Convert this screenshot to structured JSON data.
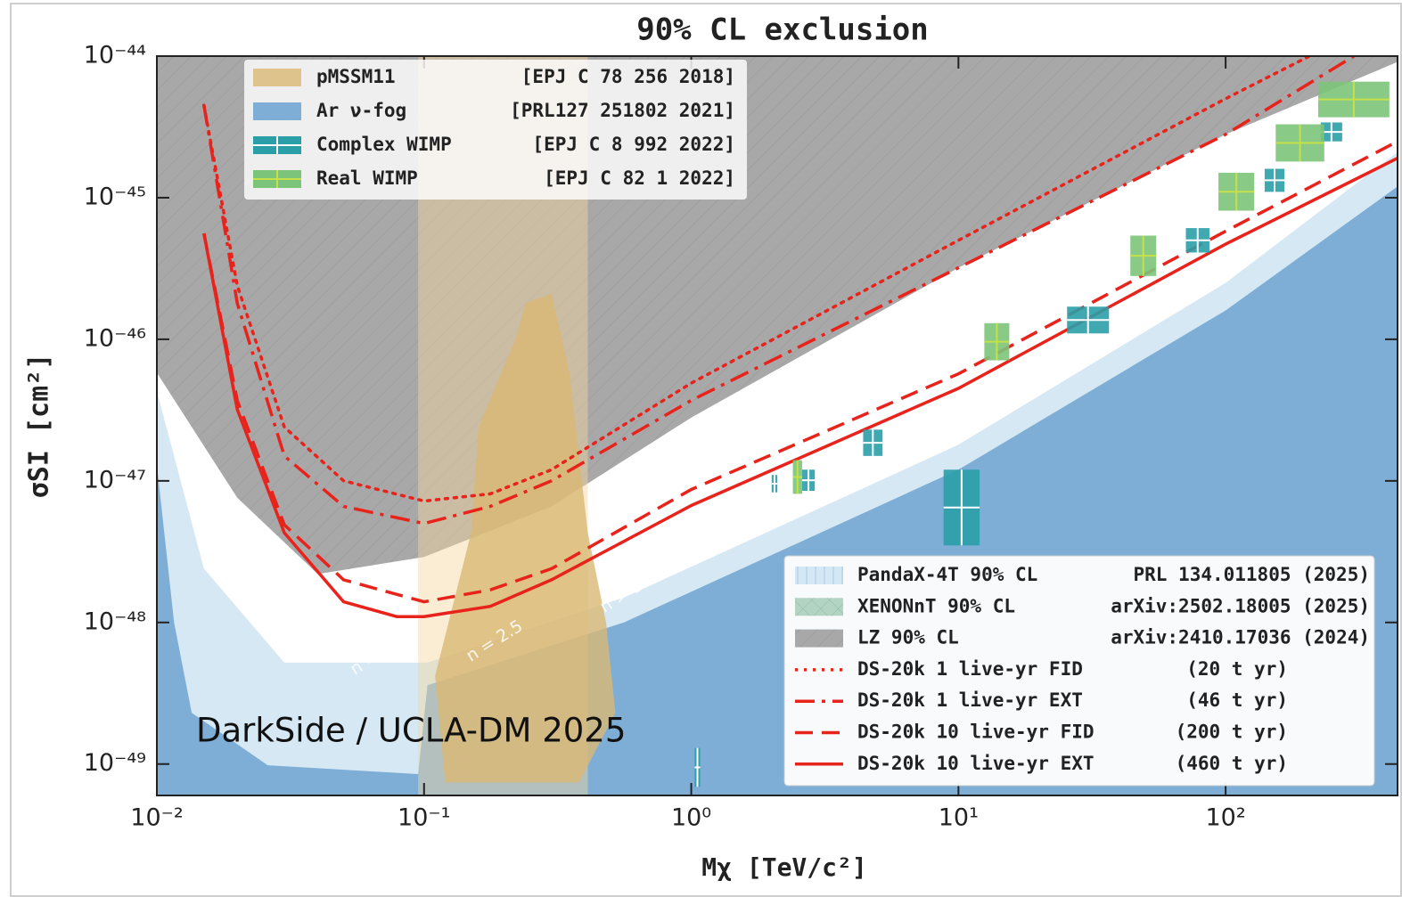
{
  "chart_data": {
    "type": "line",
    "title": "90% CL exclusion",
    "xlabel": "Mχ [TeV/c²]",
    "ylabel": "σSI [cm²]",
    "annotation": "DarkSide / UCLA-DM 2025",
    "contour_labels": [
      "n = 2.0",
      "n = 2.5",
      "n > 3.0"
    ],
    "xscale": "log",
    "yscale": "log",
    "xlim": [
      0.01,
      440
    ],
    "ylim": [
      6e-50,
      1e-44
    ],
    "xticks": [
      {
        "value": 0.01,
        "label": "10⁻²"
      },
      {
        "value": 0.1,
        "label": "10⁻¹"
      },
      {
        "value": 1,
        "label": "10⁰"
      },
      {
        "value": 10,
        "label": "10¹"
      },
      {
        "value": 100,
        "label": "10²"
      }
    ],
    "yticks": [
      {
        "value": 1e-49,
        "label": "10⁻⁴⁹"
      },
      {
        "value": 1e-48,
        "label": "10⁻⁴⁸"
      },
      {
        "value": 1e-47,
        "label": "10⁻⁴⁷"
      },
      {
        "value": 1e-46,
        "label": "10⁻⁴⁶"
      },
      {
        "value": 1e-45,
        "label": "10⁻⁴⁵"
      },
      {
        "value": 1e-44,
        "label": "10⁻⁴⁴"
      }
    ],
    "regions": [
      {
        "name": "PandaX-4T 90% CL",
        "ref": "PRL 134.011805 (2025)",
        "legend": "lower right",
        "color": "#d3e7f5",
        "hatch": "vertical",
        "fill": "above",
        "opacity": 1,
        "x": [
          0.01,
          0.03,
          0.1,
          0.3,
          1,
          10,
          50
        ],
        "y": [
          1e-46,
          1.3e-47,
          1.5e-47,
          2.8e-47,
          1.3e-46,
          2.8e-45,
          1e-44
        ]
      },
      {
        "name": "XENONnT 90% CL",
        "ref": "arXiv:2502.18005 (2025)",
        "legend": "lower right",
        "color": "#9cc7b0",
        "hatch": "cross",
        "fill": "above",
        "opacity": 0.75,
        "x": [
          0.01,
          0.03,
          0.1,
          0.3,
          1,
          3,
          10
        ],
        "y": [
          3.7e-46,
          1.8e-47,
          1.7e-47,
          3.2e-47,
          1.8e-46,
          1.2e-45,
          1e-44
        ]
      },
      {
        "name": "LZ 90% CL",
        "ref": "arXiv:2410.17036 (2024)",
        "legend": "lower right",
        "color": "#a8a8a8",
        "hatch": "diagonal",
        "fill": "above",
        "opacity": 1,
        "x": [
          0.01,
          0.02,
          0.04,
          0.1,
          0.3,
          1,
          10,
          100,
          440
        ],
        "y": [
          5.8e-47,
          7.6e-48,
          2.2e-48,
          2.9e-48,
          6.6e-48,
          2.8e-47,
          3.2e-46,
          2.8e-45,
          9.1e-45
        ]
      },
      {
        "color": "#d6e8f3",
        "fill": "below",
        "opacity": 1,
        "x": [
          0.01,
          0.015,
          0.03,
          0.103,
          0.56,
          10,
          100,
          440
        ],
        "y": [
          4.3e-47,
          2.4e-48,
          5.2e-49,
          5.2e-49,
          1.5e-48,
          1.8e-47,
          2.5e-46,
          2.1e-45
        ]
      },
      {
        "name": "Ar ν-fog",
        "ref": "[PRL127 251802 2021]",
        "legend": "upper left",
        "color": "#7eaed6",
        "fill": "below",
        "opacity": 1,
        "x": [
          0.01,
          0.0116,
          0.0135,
          0.026,
          0.095,
          0.103,
          0.56,
          10,
          100,
          440
        ],
        "y": [
          1.3e-47,
          1e-48,
          2.3e-49,
          9.8e-50,
          8.5e-50,
          3.6e-49,
          1e-48,
          1.2e-47,
          1.6e-46,
          1.2e-45
        ]
      },
      {
        "color": "#f3d8a0",
        "fill": "closed",
        "opacity": 0.45,
        "x": [
          0.095,
          0.41,
          0.41,
          0.095
        ],
        "y": [
          6e-50,
          6e-50,
          1e-44,
          1e-44
        ]
      },
      {
        "name": "pMSSM11",
        "ref": "[EPJ C 78 256 2018]",
        "legend": "upper left",
        "color": "#d9b873",
        "fill": "closed",
        "opacity": 0.8,
        "x": [
          0.24,
          0.3,
          0.35,
          0.41,
          0.48,
          0.52,
          0.38,
          0.12,
          0.11,
          0.15,
          0.16,
          0.22
        ],
        "y": [
          1.8e-46,
          2.1e-46,
          5.8e-47,
          4.3e-48,
          1e-48,
          2.3e-49,
          7.4e-50,
          7.4e-50,
          4.2e-49,
          4.3e-48,
          2.4e-47,
          1e-46
        ]
      }
    ],
    "series": [
      {
        "name": "DS-20k 1 live-yr FID",
        "ref": "(20 t yr)",
        "legend": "lower right",
        "color": "#e8231c",
        "style": "dotted",
        "x": [
          0.015,
          0.02,
          0.03,
          0.05,
          0.1,
          0.177,
          0.3,
          1,
          10,
          100,
          206
        ],
        "y": [
          4.5e-45,
          2.4e-46,
          2.4e-47,
          1e-47,
          7.2e-48,
          8.1e-48,
          1.2e-47,
          4.9e-47,
          5e-46,
          5e-45,
          1e-44
        ]
      },
      {
        "name": "DS-20k 1 live-yr EXT",
        "ref": "(46 t yr)",
        "legend": "lower right",
        "color": "#e8231c",
        "style": "dashdot",
        "x": [
          0.015,
          0.02,
          0.03,
          0.05,
          0.1,
          0.177,
          0.3,
          1,
          10,
          100,
          302
        ],
        "y": [
          4.5e-45,
          1.8e-46,
          1.5e-47,
          6.6e-48,
          5e-48,
          6.6e-48,
          1e-47,
          3.7e-47,
          3.2e-46,
          2.8e-45,
          1e-44
        ]
      },
      {
        "name": "DS-20k 10 live-yr FID",
        "ref": "(200 t yr)",
        "legend": "lower right",
        "color": "#e8231c",
        "style": "dashed",
        "x": [
          0.015,
          0.02,
          0.03,
          0.05,
          0.1,
          0.177,
          0.3,
          1,
          10,
          100,
          440
        ],
        "y": [
          5.6e-46,
          3.7e-47,
          4.9e-48,
          2e-48,
          1.4e-48,
          1.7e-48,
          2.4e-48,
          8.7e-48,
          5.7e-47,
          5.8e-46,
          2.5e-45
        ]
      },
      {
        "name": "DS-20k 10 live-yr EXT",
        "ref": "(460 t yr)",
        "legend": "lower right",
        "color": "#e8231c",
        "style": "solid",
        "x": [
          0.015,
          0.02,
          0.03,
          0.05,
          0.079,
          0.1,
          0.177,
          0.3,
          1,
          10,
          100,
          440
        ],
        "y": [
          5.6e-46,
          3.2e-47,
          4.3e-48,
          1.4e-48,
          1.1e-48,
          1.1e-48,
          1.3e-48,
          2e-48,
          6.7e-48,
          4.5e-47,
          4.7e-46,
          1.9e-45
        ]
      }
    ],
    "box_groups": [
      {
        "name": "Complex WIMP",
        "ref": "[EPJ C 8 992 2022]",
        "legend": "upper left",
        "color": "#2b9fa8",
        "cross": "#ffffff",
        "boxes": [
          {
            "x": [
              8.8,
              12
            ],
            "y": [
              3.5e-48,
              1.2e-47
            ]
          },
          {
            "x": [
              25.5,
              36.6
            ],
            "y": [
              1.1e-46,
              1.7e-46
            ]
          },
          {
            "x": [
              71,
              87
            ],
            "y": [
              4.1e-46,
              6.1e-46
            ]
          },
          {
            "x": [
              140,
              166
            ],
            "y": [
              1.1e-45,
              1.6e-45
            ]
          },
          {
            "x": [
              227,
              273
            ],
            "y": [
              2.5e-45,
              3.4e-45
            ]
          },
          {
            "x": [
              4.4,
              5.2
            ],
            "y": [
              1.5e-47,
              2.3e-47
            ]
          },
          {
            "x": [
              2.6,
              2.9
            ],
            "y": [
              8.5e-48,
              1.2e-47
            ]
          },
          {
            "x": [
              2.0,
              2.1
            ],
            "y": [
              8.3e-48,
              1.1e-47
            ]
          },
          {
            "x": [
              1.03,
              1.08
            ],
            "y": [
              6.9e-50,
              1.3e-49
            ]
          }
        ]
      },
      {
        "name": "Real WIMP",
        "ref": "[EPJ C 82 1 2022]",
        "legend": "upper left",
        "color": "#7cc47a",
        "cross": "#c6e04a",
        "boxes": [
          {
            "x": [
              44,
              55
            ],
            "y": [
              2.8e-46,
              5.4e-46
            ]
          },
          {
            "x": [
              12.5,
              15.5
            ],
            "y": [
              7.1e-47,
              1.3e-46
            ]
          },
          {
            "x": [
              94,
              128
            ],
            "y": [
              8.1e-46,
              1.5e-45
            ]
          },
          {
            "x": [
              154,
              234
            ],
            "y": [
              1.8e-45,
              3.3e-45
            ]
          },
          {
            "x": [
              222,
              410
            ],
            "y": [
              3.7e-45,
              6.6e-45
            ]
          },
          {
            "x": [
              2.4,
              2.6
            ],
            "y": [
              8.1e-48,
              1.4e-47
            ]
          }
        ]
      }
    ]
  }
}
